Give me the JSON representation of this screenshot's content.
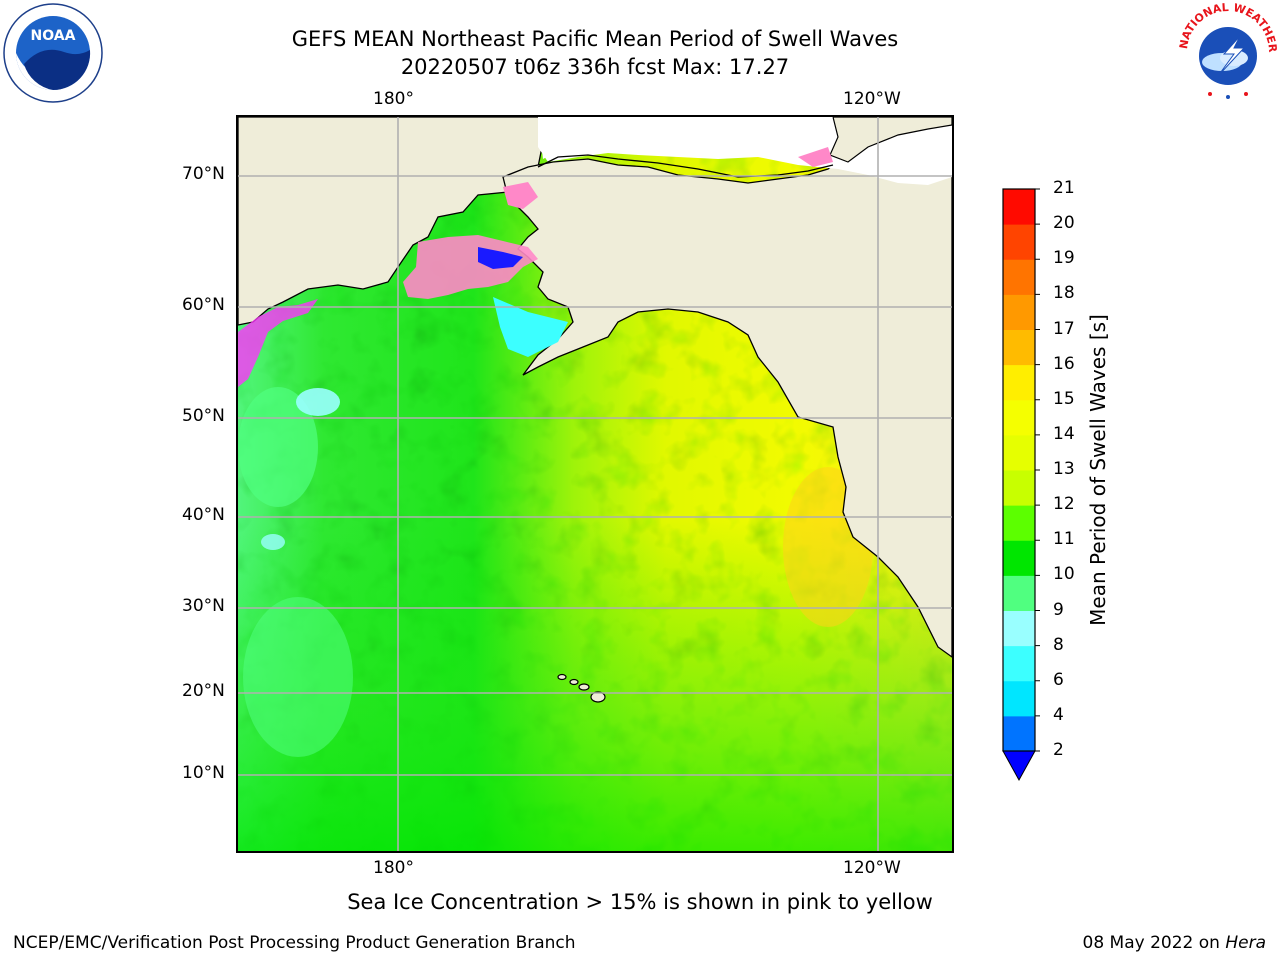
{
  "title": {
    "line1": "GEFS MEAN Northeast Pacific Mean Period of Swell Waves",
    "line2": "20220507 t06z 336h fcst   Max: 17.27"
  },
  "map": {
    "top_lon_labels": [
      "180°",
      "120°W"
    ],
    "bottom_lon_labels": [
      "180°",
      "120°W"
    ],
    "lat_labels": [
      "70°N",
      "60°N",
      "50°N",
      "40°N",
      "30°N",
      "20°N",
      "10°N"
    ],
    "colors": {
      "land": "#efedd9",
      "grid": "#b0b0b0",
      "coast": "#000000",
      "ice_pink": "#ff88c8",
      "ice_magenta": "#ff33ff"
    }
  },
  "colorbar": {
    "label": "Mean Period of Swell Waves [s]",
    "ticks": [
      "2",
      "4",
      "6",
      "8",
      "9",
      "10",
      "11",
      "12",
      "13",
      "14",
      "15",
      "16",
      "17",
      "18",
      "19",
      "20",
      "21"
    ],
    "colors": [
      "#0074ff",
      "#00e6ff",
      "#3cffff",
      "#99ffff",
      "#50ff80",
      "#00e600",
      "#5cff00",
      "#c8ff00",
      "#e6ff00",
      "#f5ff00",
      "#ffee00",
      "#ffbb00",
      "#ff9900",
      "#ff7400",
      "#ff4400",
      "#ff0a00"
    ],
    "under_color": "#0000ff"
  },
  "footnote": "Sea Ice Concentration > 15% is shown in pink to yellow",
  "credits": {
    "left": "NCEP/EMC/Verification Post Processing Product Generation Branch",
    "right_prefix": "08 May 2022 on ",
    "right_host": "Hera"
  },
  "logos": {
    "noaa": "NOAA",
    "nws": "NATIONAL WEATHER SERVICE"
  }
}
